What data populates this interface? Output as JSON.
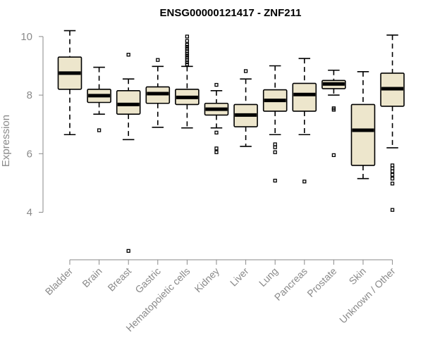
{
  "chart_data": {
    "type": "box",
    "title": "ENSG00000121417 - ZNF211",
    "xlabel": "",
    "ylabel": "Expression",
    "ylim": [
      2.5,
      10.5
    ],
    "yticks": [
      4,
      6,
      8,
      10
    ],
    "categories": [
      "Bladder",
      "Brain",
      "Breast",
      "Gastric",
      "Hematopoietic cells",
      "Kidney",
      "Liver",
      "Lung",
      "Pancreas",
      "Prostate",
      "Skin",
      "Unknown / Other"
    ],
    "boxes": [
      {
        "whisker_low": 6.65,
        "q1": 8.2,
        "median": 8.75,
        "q3": 9.3,
        "whisker_high": 10.2,
        "outliers": []
      },
      {
        "whisker_low": 7.35,
        "q1": 7.75,
        "median": 7.98,
        "q3": 8.2,
        "whisker_high": 8.95,
        "outliers": [
          6.8
        ]
      },
      {
        "whisker_low": 6.48,
        "q1": 7.35,
        "median": 7.68,
        "q3": 8.15,
        "whisker_high": 8.55,
        "outliers": [
          9.38,
          2.68
        ]
      },
      {
        "whisker_low": 6.9,
        "q1": 7.72,
        "median": 8.05,
        "q3": 8.28,
        "whisker_high": 8.98,
        "outliers": [
          9.2
        ]
      },
      {
        "whisker_low": 6.88,
        "q1": 7.68,
        "median": 7.92,
        "q3": 8.2,
        "whisker_high": 8.98,
        "outliers": [
          9.05,
          9.12,
          9.2,
          9.28,
          9.35,
          9.42,
          9.5,
          9.58,
          9.65,
          9.72,
          9.85,
          10.0
        ]
      },
      {
        "whisker_low": 6.88,
        "q1": 7.32,
        "median": 7.52,
        "q3": 7.72,
        "whisker_high": 8.15,
        "outliers": [
          8.35,
          6.72,
          6.18,
          6.05
        ]
      },
      {
        "whisker_low": 6.25,
        "q1": 6.92,
        "median": 7.32,
        "q3": 7.68,
        "whisker_high": 8.55,
        "outliers": [
          8.82
        ]
      },
      {
        "whisker_low": 6.65,
        "q1": 7.45,
        "median": 7.82,
        "q3": 8.18,
        "whisker_high": 9.0,
        "outliers": [
          6.32,
          6.22,
          6.05,
          5.08
        ]
      },
      {
        "whisker_low": 6.65,
        "q1": 7.45,
        "median": 8.02,
        "q3": 8.4,
        "whisker_high": 9.25,
        "outliers": [
          5.05
        ]
      },
      {
        "whisker_low": 8.0,
        "q1": 8.22,
        "median": 8.38,
        "q3": 8.5,
        "whisker_high": 8.85,
        "outliers": [
          7.55,
          7.5,
          5.95
        ]
      },
      {
        "whisker_low": 5.15,
        "q1": 5.6,
        "median": 6.8,
        "q3": 7.68,
        "whisker_high": 8.8,
        "outliers": []
      },
      {
        "whisker_low": 6.2,
        "q1": 7.62,
        "median": 8.22,
        "q3": 8.75,
        "whisker_high": 10.05,
        "outliers": [
          5.6,
          5.5,
          5.4,
          5.28,
          5.15,
          4.98,
          4.08
        ]
      }
    ],
    "colors": {
      "box_fill": "#ede6cc",
      "box_stroke": "#000000",
      "median": "#000000",
      "axis": "#8a8a8a"
    },
    "grid": false,
    "legend": "none"
  }
}
